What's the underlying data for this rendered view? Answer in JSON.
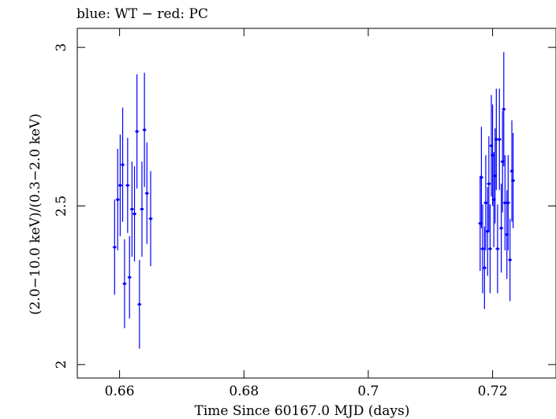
{
  "chart_data": {
    "type": "scatter",
    "title": "blue: WT − red: PC",
    "xlabel": "Time Since 60167.0 MJD (days)",
    "ylabel": "(2.0−10.0 keV)/(0.3−2.0 keV)",
    "xlim": [
      0.6532,
      0.7302
    ],
    "ylim": [
      1.9575,
      3.06
    ],
    "xticks": [
      0.66,
      0.68,
      0.7,
      0.72
    ],
    "xtick_labels": [
      "0.66",
      "0.68",
      "0.7",
      "0.72"
    ],
    "yticks": [
      2,
      2.5,
      3
    ],
    "ytick_labels": [
      "2",
      "2.5",
      "3"
    ],
    "grid": false,
    "series": [
      {
        "color": "#0000ff",
        "points": [
          {
            "x": 0.6592,
            "y": 2.37,
            "yerr": 0.15
          },
          {
            "x": 0.6597,
            "y": 2.52,
            "yerr": 0.16
          },
          {
            "x": 0.6601,
            "y": 2.565,
            "yerr": 0.16
          },
          {
            "x": 0.6605,
            "y": 2.63,
            "yerr": 0.18
          },
          {
            "x": 0.6608,
            "y": 2.255,
            "yerr": 0.14
          },
          {
            "x": 0.6613,
            "y": 2.565,
            "yerr": 0.15
          },
          {
            "x": 0.6616,
            "y": 2.275,
            "yerr": 0.13
          },
          {
            "x": 0.662,
            "y": 2.49,
            "yerr": 0.15
          },
          {
            "x": 0.6624,
            "y": 2.475,
            "yerr": 0.15
          },
          {
            "x": 0.6628,
            "y": 2.735,
            "yerr": 0.18
          },
          {
            "x": 0.6632,
            "y": 2.19,
            "yerr": 0.14
          },
          {
            "x": 0.6636,
            "y": 2.49,
            "yerr": 0.15
          },
          {
            "x": 0.664,
            "y": 2.74,
            "yerr": 0.18
          },
          {
            "x": 0.6644,
            "y": 2.54,
            "yerr": 0.16
          },
          {
            "x": 0.665,
            "y": 2.46,
            "yerr": 0.15
          },
          {
            "x": 0.718,
            "y": 2.445,
            "yerr": 0.15
          },
          {
            "x": 0.7182,
            "y": 2.59,
            "yerr": 0.16
          },
          {
            "x": 0.7184,
            "y": 2.365,
            "yerr": 0.14
          },
          {
            "x": 0.7187,
            "y": 2.305,
            "yerr": 0.13
          },
          {
            "x": 0.7189,
            "y": 2.51,
            "yerr": 0.15
          },
          {
            "x": 0.7192,
            "y": 2.42,
            "yerr": 0.14
          },
          {
            "x": 0.7194,
            "y": 2.57,
            "yerr": 0.15
          },
          {
            "x": 0.7196,
            "y": 2.365,
            "yerr": 0.14
          },
          {
            "x": 0.7198,
            "y": 2.69,
            "yerr": 0.16
          },
          {
            "x": 0.72,
            "y": 2.66,
            "yerr": 0.16
          },
          {
            "x": 0.7202,
            "y": 2.52,
            "yerr": 0.15
          },
          {
            "x": 0.7204,
            "y": 2.595,
            "yerr": 0.15
          },
          {
            "x": 0.7206,
            "y": 2.71,
            "yerr": 0.16
          },
          {
            "x": 0.7208,
            "y": 2.365,
            "yerr": 0.14
          },
          {
            "x": 0.7211,
            "y": 2.71,
            "yerr": 0.16
          },
          {
            "x": 0.7214,
            "y": 2.43,
            "yerr": 0.14
          },
          {
            "x": 0.7216,
            "y": 2.64,
            "yerr": 0.16
          },
          {
            "x": 0.7218,
            "y": 2.805,
            "yerr": 0.18
          },
          {
            "x": 0.722,
            "y": 2.51,
            "yerr": 0.15
          },
          {
            "x": 0.7223,
            "y": 2.41,
            "yerr": 0.14
          },
          {
            "x": 0.7225,
            "y": 2.51,
            "yerr": 0.15
          },
          {
            "x": 0.7228,
            "y": 2.33,
            "yerr": 0.13
          },
          {
            "x": 0.7231,
            "y": 2.61,
            "yerr": 0.16
          },
          {
            "x": 0.7233,
            "y": 2.58,
            "yerr": 0.15
          }
        ]
      }
    ]
  }
}
